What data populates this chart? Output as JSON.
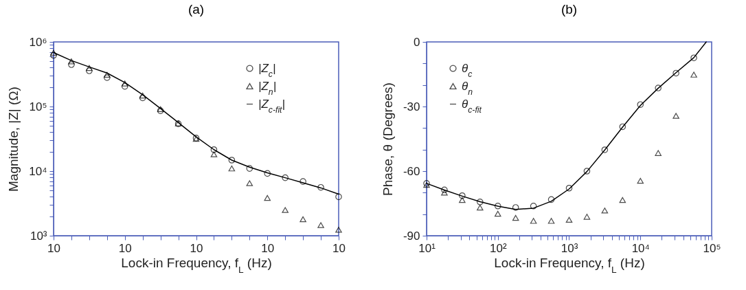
{
  "chart_data": [
    {
      "type": "scatter",
      "title": "(a)",
      "xlabel": "Lock-in Frequency, f$_{L}$ (Hz)",
      "ylabel": "Magnitude, |Z| (Ω)",
      "log": "y",
      "legend": "top right",
      "categories": [
        "10",
        null,
        null,
        null,
        "10",
        null,
        null,
        null,
        "10",
        null,
        null,
        null,
        "10",
        null,
        null,
        null,
        "10"
      ],
      "ylim": [
        1000,
        1000000
      ],
      "yticks": [
        {
          "value": 1000,
          "label": "10³"
        },
        {
          "value": 2000,
          "label": null
        },
        {
          "value": 3000,
          "label": null
        },
        {
          "value": 4000,
          "label": null
        },
        {
          "value": 5000,
          "label": null
        },
        {
          "value": 6000,
          "label": null
        },
        {
          "value": 7000,
          "label": null
        },
        {
          "value": 8000,
          "label": null
        },
        {
          "value": 9000,
          "label": null
        },
        {
          "value": 10000,
          "label": "10⁴"
        },
        {
          "value": 20000,
          "label": null
        },
        {
          "value": 30000,
          "label": null
        },
        {
          "value": 40000,
          "label": null
        },
        {
          "value": 50000,
          "label": null
        },
        {
          "value": 60000,
          "label": null
        },
        {
          "value": 70000,
          "label": null
        },
        {
          "value": 80000,
          "label": null
        },
        {
          "value": 90000,
          "label": null
        },
        {
          "value": 100000,
          "label": "10⁵"
        },
        {
          "value": 200000,
          "label": null
        },
        {
          "value": 300000,
          "label": null
        },
        {
          "value": 400000,
          "label": null
        },
        {
          "value": 500000,
          "label": null
        },
        {
          "value": 600000,
          "label": null
        },
        {
          "value": 700000,
          "label": null
        },
        {
          "value": 800000,
          "label": null
        },
        {
          "value": 900000,
          "label": null
        },
        {
          "value": 1000000,
          "label": "10⁶"
        }
      ],
      "series": [
        {
          "name": "|Z$_{c}$|",
          "marker": "circle",
          "color": "#000000",
          "values": [
            620000,
            445000,
            357000,
            280000,
            205000,
            136000,
            86000,
            54000,
            32500,
            21500,
            14800,
            11000,
            9200,
            7900,
            6900,
            5600,
            4000
          ]
        },
        {
          "name": "|Z$_{n}$|",
          "marker": "triangle",
          "color": "#000000",
          "values": [
            680000,
            500000,
            395000,
            310000,
            227000,
            148000,
            91000,
            55000,
            31600,
            18200,
            11000,
            6500,
            3850,
            2500,
            1800,
            1460,
            1240
          ]
        },
        {
          "name": "|Z$_{c-fit}$|",
          "type": "line",
          "marker": "none",
          "line_style": "solid",
          "color": "#000000",
          "values": [
            684000,
            515000,
            410000,
            330000,
            235000,
            152000,
            93000,
            56500,
            34000,
            21500,
            14800,
            11500,
            9400,
            7900,
            6600,
            5500,
            4400
          ]
        }
      ]
    },
    {
      "type": "scatter",
      "title": "(b)",
      "xlabel": "Lock-in Frequency, f$_{L}$ (Hz)",
      "ylabel": "Phase, θ (Degrees)",
      "log": "x",
      "legend": "top left",
      "xlim": [
        10,
        100000
      ],
      "ylim": [
        -90,
        0
      ],
      "xticks": [
        {
          "value": 10,
          "label": "10¹"
        },
        {
          "value": 20,
          "label": null
        },
        {
          "value": 30,
          "label": null
        },
        {
          "value": 40,
          "label": null
        },
        {
          "value": 50,
          "label": null
        },
        {
          "value": 60,
          "label": null
        },
        {
          "value": 70,
          "label": null
        },
        {
          "value": 80,
          "label": null
        },
        {
          "value": 90,
          "label": null
        },
        {
          "value": 100,
          "label": "10²"
        },
        {
          "value": 200,
          "label": null
        },
        {
          "value": 300,
          "label": null
        },
        {
          "value": 400,
          "label": null
        },
        {
          "value": 500,
          "label": null
        },
        {
          "value": 600,
          "label": null
        },
        {
          "value": 700,
          "label": null
        },
        {
          "value": 800,
          "label": null
        },
        {
          "value": 900,
          "label": null
        },
        {
          "value": 1000,
          "label": "10³"
        },
        {
          "value": 2000,
          "label": null
        },
        {
          "value": 3000,
          "label": null
        },
        {
          "value": 4000,
          "label": null
        },
        {
          "value": 5000,
          "label": null
        },
        {
          "value": 6000,
          "label": null
        },
        {
          "value": 7000,
          "label": null
        },
        {
          "value": 8000,
          "label": null
        },
        {
          "value": 9000,
          "label": null
        },
        {
          "value": 10000,
          "label": "10⁴"
        },
        {
          "value": 20000,
          "label": null
        },
        {
          "value": 30000,
          "label": null
        },
        {
          "value": 40000,
          "label": null
        },
        {
          "value": 50000,
          "label": null
        },
        {
          "value": 60000,
          "label": null
        },
        {
          "value": 70000,
          "label": null
        },
        {
          "value": 80000,
          "label": null
        },
        {
          "value": 90000,
          "label": null
        },
        {
          "value": 100000,
          "label": "10⁵"
        }
      ],
      "yticks": [
        -90,
        {
          "value": -80,
          "label": null
        },
        {
          "value": -70,
          "label": null
        },
        -60,
        {
          "value": -50,
          "label": null
        },
        {
          "value": -40,
          "label": null
        },
        -30,
        {
          "value": -20,
          "label": null
        },
        {
          "value": -10,
          "label": null
        },
        0
      ],
      "series": [
        {
          "name": "θ$_{c}$",
          "marker": "circle",
          "color": "#000000",
          "x": [
            10,
            17.78,
            31.62,
            56.23,
            100,
            177.8,
            316.2,
            562.3,
            1000,
            1778,
            3162,
            5623,
            10000,
            17783,
            31623,
            56234
          ],
          "values": [
            -65.7,
            -68.7,
            -71.4,
            -74.3,
            -76.2,
            -76.9,
            -76.2,
            -73.2,
            -67.9,
            -60.0,
            -50.1,
            -39.4,
            -29.1,
            -21.4,
            -14.5,
            -7.4
          ]
        },
        {
          "name": "θ$_{n}$",
          "marker": "triangle",
          "color": "#000000",
          "x": [
            10,
            17.78,
            31.62,
            56.23,
            100,
            177.8,
            316.2,
            562.3,
            1000,
            1778,
            3162,
            5623,
            10000,
            17783,
            31623,
            56234
          ],
          "values": [
            -66.4,
            -70.0,
            -73.4,
            -76.9,
            -79.8,
            -81.7,
            -83.1,
            -83.1,
            -82.6,
            -81.2,
            -78.3,
            -73.4,
            -64.5,
            -51.6,
            -34.3,
            -15.2
          ]
        },
        {
          "name": "θ$_{c-fit}$",
          "type": "line",
          "marker": "none",
          "line_style": "solid",
          "color": "#000000",
          "x": [
            10,
            17.78,
            31.62,
            56.23,
            100,
            177.8,
            316.2,
            562.3,
            1000,
            1778,
            3162,
            5623,
            10000,
            17783,
            31623,
            56234,
            84000
          ],
          "values": [
            -65.7,
            -68.8,
            -71.6,
            -74.2,
            -76.3,
            -77.8,
            -77.2,
            -74.0,
            -68.3,
            -60.2,
            -50.2,
            -39.6,
            -29.5,
            -21.5,
            -14.3,
            -7.3,
            0
          ]
        }
      ]
    }
  ]
}
